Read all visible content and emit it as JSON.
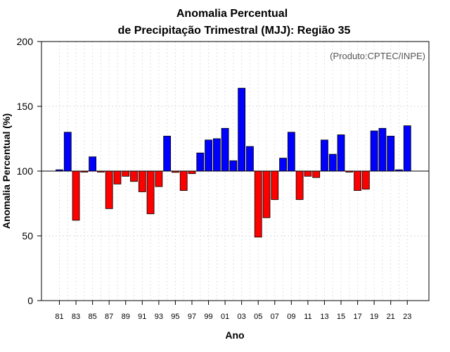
{
  "chart_data": {
    "type": "bar",
    "title_line1": "Anomalia Percentual",
    "title_line2": "de Precipitação Trimestral (MJJ): Região 35",
    "credit": "(Produto:CPTEC/INPE)",
    "xlabel": "Ano",
    "ylabel": "Anomalia Percentual (%)",
    "ylim": [
      0,
      200
    ],
    "yticks": [
      "0",
      "50",
      "100",
      "150",
      "200"
    ],
    "baseline": 100,
    "years": [
      "81",
      "82",
      "83",
      "84",
      "85",
      "86",
      "87",
      "88",
      "89",
      "90",
      "91",
      "92",
      "93",
      "94",
      "95",
      "96",
      "97",
      "98",
      "99",
      "00",
      "01",
      "02",
      "03",
      "04",
      "05",
      "06",
      "07",
      "08",
      "09",
      "10",
      "11",
      "12",
      "13",
      "14",
      "15",
      "16",
      "17",
      "18",
      "19",
      "20",
      "21",
      "22",
      "23"
    ],
    "tick_labels": [
      "81",
      "83",
      "85",
      "87",
      "89",
      "91",
      "93",
      "95",
      "97",
      "99",
      "01",
      "03",
      "05",
      "07",
      "09",
      "11",
      "13",
      "15",
      "17",
      "19",
      "21",
      "23"
    ],
    "values": [
      101,
      130,
      62,
      99.5,
      111,
      99.5,
      71,
      90,
      96,
      92,
      84,
      67,
      88,
      127,
      99,
      85,
      98,
      114,
      124,
      125,
      133,
      108,
      164,
      119,
      49,
      64,
      78,
      110,
      130,
      78,
      96,
      95,
      124,
      113,
      128,
      99.5,
      85,
      86,
      131,
      133,
      127,
      101,
      135
    ],
    "colors": {
      "above": "#0000ff",
      "below": "#ff0000",
      "outline": "#000000"
    }
  }
}
